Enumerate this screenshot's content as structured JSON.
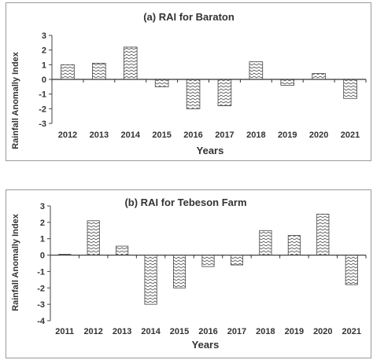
{
  "chart_data": [
    {
      "type": "bar",
      "title": "(a) RAI for Baraton",
      "xlabel": "Years",
      "ylabel": "Rainfall Anomally Index",
      "categories": [
        "2012",
        "2013",
        "2014",
        "2015",
        "2016",
        "2017",
        "2018",
        "2019",
        "2020",
        "2021"
      ],
      "values": [
        1.0,
        1.1,
        2.2,
        -0.5,
        -2.0,
        -1.8,
        1.2,
        -0.4,
        0.4,
        -1.3
      ],
      "ylim": [
        -3,
        3
      ],
      "yticks": [
        "3",
        "2",
        "1",
        "0",
        "-1",
        "-2",
        "-3"
      ],
      "grid": false,
      "bar_pattern": "zigzag"
    },
    {
      "type": "bar",
      "title": "(b) RAI for Tebeson Farm",
      "xlabel": "Years",
      "ylabel": "Rainfall Anomally Index",
      "categories": [
        "2011",
        "2012",
        "2013",
        "2014",
        "2015",
        "2016",
        "2017",
        "2018",
        "2019",
        "2020",
        "2021"
      ],
      "values": [
        0.05,
        2.1,
        0.55,
        -3.0,
        -2.0,
        -0.7,
        -0.6,
        1.5,
        1.2,
        2.5,
        -1.8
      ],
      "ylim": [
        -4,
        3
      ],
      "yticks": [
        "3",
        "2",
        "1",
        "0",
        "-1",
        "-2",
        "-3",
        "-4"
      ],
      "grid": false,
      "bar_pattern": "zigzag"
    }
  ]
}
